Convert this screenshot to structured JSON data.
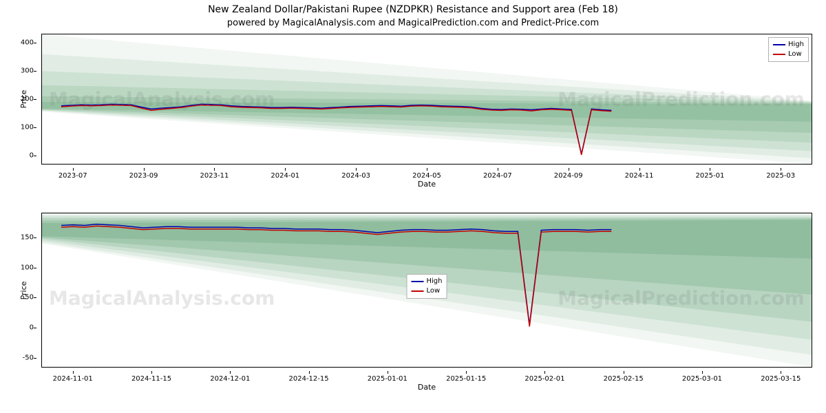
{
  "title": "New Zealand Dollar/Pakistani Rupee (NZDPKR) Resistance and Support area (Feb 18)",
  "subtitle": "powered by MagicalAnalysis.com and MagicalPrediction.com and Predict-Price.com",
  "watermarks": {
    "left": "MagicalAnalysis.com",
    "right": "MagicalPrediction.com"
  },
  "legend": {
    "high": {
      "label": "High",
      "color": "#0000aa"
    },
    "low": {
      "label": "Low",
      "color": "#c20000"
    }
  },
  "axis_label_x": "Date",
  "axis_label_y": "Price",
  "band_color": "#7cb28c",
  "background": "#ffffff",
  "border_color": "#000000",
  "tick_fontsize": 10,
  "label_fontsize": 11,
  "title_fontsize": 14,
  "subtitle_fontsize": 13,
  "line_width": 1.5,
  "top_panel": {
    "type": "line",
    "ylim": [
      -30,
      430
    ],
    "yticks": [
      0,
      100,
      200,
      300,
      400
    ],
    "xticks": [
      "2023-07",
      "2023-09",
      "2023-11",
      "2024-01",
      "2024-03",
      "2024-05",
      "2024-07",
      "2024-09",
      "2024-11",
      "2025-01",
      "2025-03"
    ],
    "xlim_months": 22,
    "band_layers": [
      {
        "opacity": 0.1,
        "top0": 430,
        "top1": 195,
        "bot0": 155,
        "bot1": -30
      },
      {
        "opacity": 0.14,
        "top0": 360,
        "top1": 192,
        "bot0": 158,
        "bot1": -10
      },
      {
        "opacity": 0.18,
        "top0": 300,
        "top1": 190,
        "bot0": 160,
        "bot1": 15
      },
      {
        "opacity": 0.24,
        "top0": 250,
        "top1": 188,
        "bot0": 162,
        "bot1": 45
      },
      {
        "opacity": 0.32,
        "top0": 210,
        "top1": 185,
        "bot0": 164,
        "bot1": 80
      },
      {
        "opacity": 0.42,
        "top0": 190,
        "top1": 182,
        "bot0": 166,
        "bot1": 120
      }
    ],
    "high_series": [
      176,
      178,
      180,
      179,
      180,
      182,
      181,
      180,
      172,
      165,
      168,
      170,
      173,
      178,
      182,
      181,
      180,
      176,
      174,
      173,
      172,
      170,
      170,
      171,
      170,
      169,
      168,
      170,
      172,
      174,
      175,
      176,
      177,
      176,
      175,
      178,
      179,
      178,
      176,
      175,
      174,
      172,
      167,
      164,
      163,
      165,
      164,
      162,
      165,
      167,
      165,
      163,
      5,
      165,
      162,
      160
    ],
    "low_series": [
      173,
      175,
      177,
      176,
      177,
      179,
      178,
      177,
      168,
      160,
      164,
      167,
      170,
      175,
      179,
      178,
      177,
      173,
      171,
      170,
      169,
      167,
      167,
      168,
      167,
      166,
      165,
      167,
      169,
      171,
      172,
      173,
      174,
      173,
      172,
      175,
      176,
      175,
      173,
      172,
      171,
      169,
      164,
      161,
      160,
      162,
      161,
      158,
      162,
      164,
      162,
      160,
      2,
      162,
      159,
      157
    ],
    "spike_index": 52
  },
  "bottom_panel": {
    "type": "line",
    "ylim": [
      -65,
      190
    ],
    "yticks": [
      -50,
      0,
      50,
      100,
      150
    ],
    "xticks": [
      "2024-11-01",
      "2024-11-15",
      "2024-12-01",
      "2024-12-15",
      "2025-01-01",
      "2025-01-15",
      "2025-02-01",
      "2025-02-15",
      "2025-03-01",
      "2025-03-15"
    ],
    "xlim_months": 5,
    "band_layers": [
      {
        "opacity": 0.1,
        "top0": 190,
        "top1": 190,
        "bot0": 140,
        "bot1": -65
      },
      {
        "opacity": 0.14,
        "top0": 188,
        "top1": 188,
        "bot0": 142,
        "bot1": -45
      },
      {
        "opacity": 0.18,
        "top0": 185,
        "top1": 185,
        "bot0": 145,
        "bot1": -20
      },
      {
        "opacity": 0.26,
        "top0": 182,
        "top1": 183,
        "bot0": 148,
        "bot1": 10
      },
      {
        "opacity": 0.36,
        "top0": 178,
        "top1": 181,
        "bot0": 150,
        "bot1": 55
      },
      {
        "opacity": 0.48,
        "top0": 174,
        "top1": 179,
        "bot0": 152,
        "bot1": 115
      }
    ],
    "high_series": [
      170,
      171,
      170,
      172,
      171,
      170,
      168,
      166,
      167,
      168,
      168,
      167,
      167,
      167,
      167,
      167,
      166,
      166,
      165,
      165,
      164,
      164,
      164,
      163,
      163,
      162,
      160,
      158,
      160,
      162,
      163,
      163,
      162,
      162,
      163,
      164,
      163,
      161,
      160,
      160,
      5,
      162,
      163,
      163,
      163,
      162,
      163,
      163
    ],
    "low_series": [
      167,
      168,
      167,
      169,
      168,
      167,
      165,
      163,
      164,
      165,
      165,
      164,
      164,
      164,
      164,
      164,
      163,
      163,
      162,
      162,
      161,
      161,
      161,
      160,
      160,
      159,
      157,
      155,
      157,
      159,
      160,
      160,
      159,
      159,
      160,
      161,
      160,
      158,
      157,
      157,
      2,
      159,
      160,
      160,
      160,
      159,
      160,
      160
    ],
    "spike_index": 40,
    "legend_pos": "center"
  }
}
